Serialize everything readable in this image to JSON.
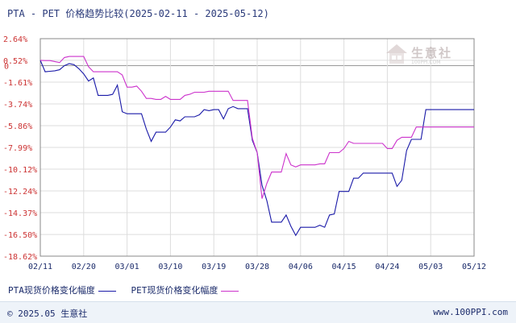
{
  "title": "PTA - PET 价格趋势比较(2025-02-11 - 2025-05-12)",
  "watermark": {
    "name": "生意社",
    "sub": "100PPI.COM"
  },
  "footer": {
    "copyright": "© 2025.05 生意社",
    "site": "www.100PPI.com"
  },
  "colors": {
    "pta": "#1a1aa8",
    "pet": "#cc33cc",
    "zero": "#999999",
    "grid": "#dddddd",
    "tick": "#cc3333"
  },
  "chart_data": {
    "type": "line",
    "xlabel": "",
    "ylabel": "",
    "x_ticks": [
      "02/11",
      "02/20",
      "03/01",
      "03/10",
      "03/19",
      "03/28",
      "04/06",
      "04/15",
      "04/24",
      "05/03",
      "05/12"
    ],
    "y_ticks": [
      "2.64%",
      "0.52%",
      "-1.61%",
      "-3.74%",
      "-5.86%",
      "-7.99%",
      "-10.12%",
      "-12.24%",
      "-14.37%",
      "-16.50%",
      "-18.62%"
    ],
    "y_tick_values": [
      2.64,
      0.52,
      -1.61,
      -3.74,
      -5.86,
      -7.99,
      -10.12,
      -12.24,
      -14.37,
      -16.5,
      -18.62
    ],
    "ylim": [
      -18.62,
      2.64
    ],
    "x_range_days": [
      0,
      90
    ],
    "series": [
      {
        "name": "PTA现货价格变化幅度",
        "color": "#1a1aa8",
        "x": [
          0,
          1,
          2,
          3,
          4,
          5,
          6,
          7,
          8,
          9,
          10,
          11,
          12,
          13,
          14,
          15,
          16,
          17,
          18,
          19,
          20,
          21,
          22,
          23,
          24,
          25,
          26,
          27,
          28,
          29,
          30,
          31,
          32,
          33,
          34,
          35,
          36,
          37,
          38,
          39,
          40,
          41,
          42,
          43,
          44,
          45,
          46,
          47,
          48,
          49,
          50,
          51,
          52,
          53,
          54,
          55,
          56,
          57,
          58,
          59,
          60,
          61,
          62,
          63,
          64,
          65,
          66,
          67,
          68,
          69,
          70,
          71,
          72,
          73,
          74,
          75,
          76,
          77,
          78,
          79,
          80,
          81,
          82,
          83,
          84,
          85,
          86,
          87,
          88,
          89,
          90
        ],
        "values": [
          0.52,
          -0.6,
          -0.55,
          -0.5,
          -0.4,
          0.0,
          0.2,
          0.1,
          -0.3,
          -0.8,
          -1.5,
          -1.2,
          -2.9,
          -2.9,
          -2.9,
          -2.8,
          -1.9,
          -4.5,
          -4.7,
          -4.7,
          -4.7,
          -4.7,
          -6.2,
          -7.4,
          -6.5,
          -6.5,
          -6.5,
          -6.0,
          -5.3,
          -5.4,
          -5.0,
          -5.0,
          -5.0,
          -4.8,
          -4.3,
          -4.4,
          -4.3,
          -4.3,
          -5.2,
          -4.2,
          -4.0,
          -4.2,
          -4.2,
          -4.2,
          -7.3,
          -8.5,
          -11.7,
          -13.2,
          -15.3,
          -15.3,
          -15.3,
          -14.6,
          -15.7,
          -16.6,
          -15.8,
          -15.8,
          -15.8,
          -15.8,
          -15.6,
          -15.8,
          -14.6,
          -14.5,
          -12.3,
          -12.3,
          -12.3,
          -11.0,
          -11.0,
          -10.5,
          -10.5,
          -10.5,
          -10.5,
          -10.5,
          -10.5,
          -10.5,
          -11.8,
          -11.2,
          -8.3,
          -7.2,
          -7.2,
          -7.2,
          -4.3,
          -4.3,
          -4.3,
          -4.3,
          -4.3,
          -4.3,
          -4.3,
          -4.3,
          -4.3,
          -4.3,
          -4.3
        ]
      },
      {
        "name": "PET现货价格变化幅度",
        "color": "#cc33cc",
        "x": [
          0,
          1,
          2,
          3,
          4,
          5,
          6,
          7,
          8,
          9,
          10,
          11,
          12,
          13,
          14,
          15,
          16,
          17,
          18,
          19,
          20,
          21,
          22,
          23,
          24,
          25,
          26,
          27,
          28,
          29,
          30,
          31,
          32,
          33,
          34,
          35,
          36,
          37,
          38,
          39,
          40,
          41,
          42,
          43,
          44,
          45,
          46,
          47,
          48,
          49,
          50,
          51,
          52,
          53,
          54,
          55,
          56,
          57,
          58,
          59,
          60,
          61,
          62,
          63,
          64,
          65,
          66,
          67,
          68,
          69,
          70,
          71,
          72,
          73,
          74,
          75,
          76,
          77,
          78,
          79,
          80,
          81,
          82,
          83,
          84,
          85,
          86,
          87,
          88,
          89,
          90
        ],
        "values": [
          0.52,
          0.5,
          0.5,
          0.4,
          0.3,
          0.8,
          0.9,
          0.9,
          0.9,
          0.9,
          -0.1,
          -0.6,
          -0.6,
          -0.6,
          -0.6,
          -0.6,
          -0.6,
          -0.9,
          -2.1,
          -2.1,
          -2.0,
          -2.5,
          -3.2,
          -3.2,
          -3.3,
          -3.3,
          -3.0,
          -3.3,
          -3.3,
          -3.3,
          -2.9,
          -2.8,
          -2.6,
          -2.6,
          -2.6,
          -2.5,
          -2.5,
          -2.5,
          -2.5,
          -2.5,
          -3.4,
          -3.4,
          -3.4,
          -3.4,
          -7.1,
          -8.5,
          -13.0,
          -11.5,
          -10.4,
          -10.4,
          -10.4,
          -8.6,
          -9.7,
          -9.9,
          -9.7,
          -9.7,
          -9.7,
          -9.7,
          -9.6,
          -9.6,
          -8.5,
          -8.5,
          -8.5,
          -8.1,
          -7.4,
          -7.6,
          -7.6,
          -7.6,
          -7.6,
          -7.6,
          -7.6,
          -7.6,
          -8.1,
          -8.1,
          -7.3,
          -7.0,
          -7.0,
          -7.0,
          -6.0,
          -6.0,
          -6.0,
          -6.0,
          -6.0,
          -6.0,
          -6.0,
          -6.0,
          -6.0,
          -6.0,
          -6.0,
          -6.0,
          -6.0
        ]
      }
    ],
    "legend_position": "bottom-left",
    "grid": true
  }
}
